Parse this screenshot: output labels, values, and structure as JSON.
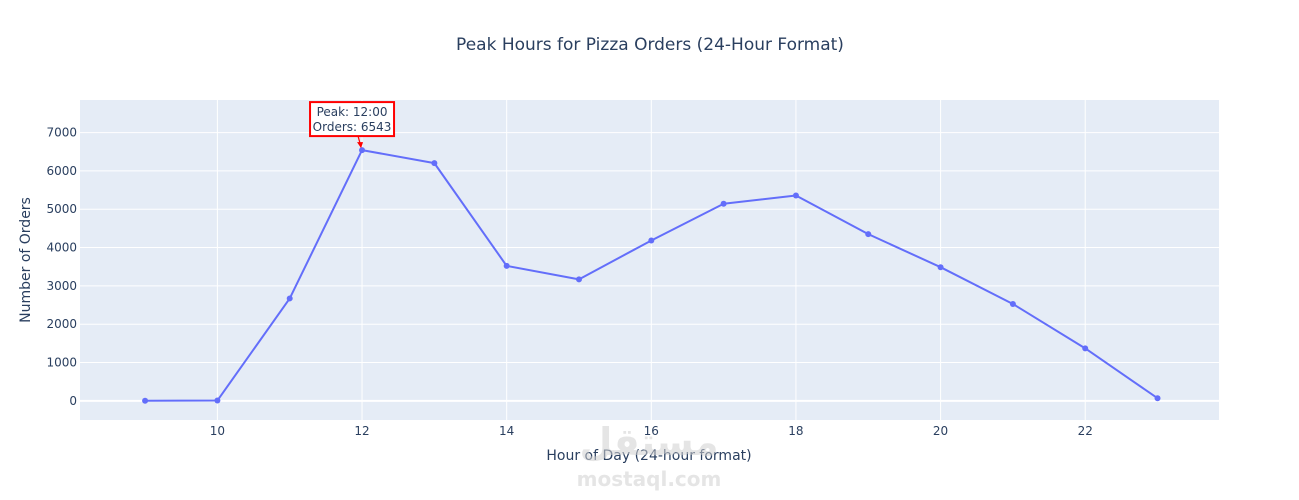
{
  "colors": {
    "plot_bg": "#e5ecf6",
    "grid": "#ffffff",
    "line": "#636efa",
    "annotation_border": "#ff0000",
    "annotation_arrow": "#ff0000",
    "text": "#2a3f5f"
  },
  "chart_data": {
    "type": "line",
    "title": "Peak Hours for Pizza Orders (24-Hour Format)",
    "xlabel": "Hour of Day (24-hour format)",
    "ylabel": "Number of Orders",
    "xlim": [
      8.1,
      23.85
    ],
    "ylim": [
      -500,
      7850
    ],
    "x_ticks": [
      10,
      12,
      14,
      16,
      18,
      20,
      22
    ],
    "y_ticks": [
      0,
      1000,
      2000,
      3000,
      4000,
      5000,
      6000,
      7000
    ],
    "grid": true,
    "markers": true,
    "series": [
      {
        "x": [
          9,
          10,
          11,
          12,
          13,
          14,
          15,
          16,
          17,
          18,
          19,
          20,
          21,
          22,
          23
        ],
        "y": [
          1,
          8,
          2672,
          6543,
          6203,
          3521,
          3170,
          4185,
          5143,
          5359,
          4350,
          3487,
          2528,
          1370,
          68
        ]
      }
    ],
    "annotation": {
      "x": 12,
      "y": 6543,
      "lines": [
        "Peak: 12:00",
        "Orders: 6543"
      ]
    }
  },
  "watermark": {
    "text_arabic": "مستقل",
    "text_latin": "mostaql.com"
  }
}
